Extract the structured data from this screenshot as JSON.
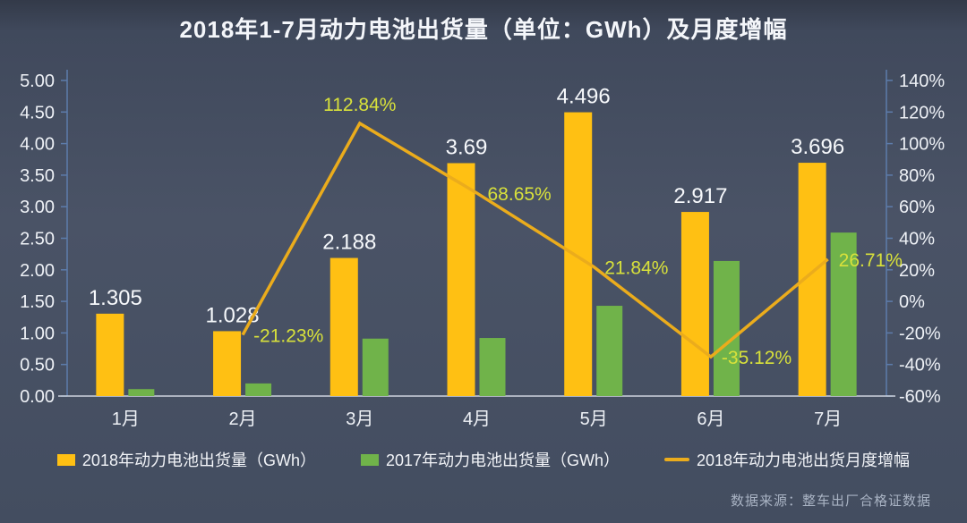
{
  "title": "2018年1-7月动力电池出货量（单位：GWh）及月度增幅",
  "source": "数据来源：整车出厂合格证数据",
  "colors": {
    "background": "#4A5366",
    "text": "#EEF1F6",
    "bar_label": "#F7F9FC",
    "line_label": "#D8E13B",
    "axis_line": "#5D7CAB",
    "baseline": "#CDD3DE",
    "bar_2018": "#FFC013",
    "bar_2017": "#70B34A",
    "growth_line": "#EBAC1C"
  },
  "chart_data": {
    "type": "combo",
    "categories": [
      "1月",
      "2月",
      "3月",
      "4月",
      "5月",
      "6月",
      "7月"
    ],
    "series": [
      {
        "name": "2018年动力电池出货量（GWh）",
        "type": "bar",
        "axis": "left",
        "color": "#FFC013",
        "values": [
          1.305,
          1.028,
          2.188,
          3.69,
          4.496,
          2.917,
          3.696
        ],
        "labels": [
          "1.305",
          "1.028",
          "2.188",
          "3.69",
          "4.496",
          "2.917",
          "3.696"
        ]
      },
      {
        "name": "2017年动力电池出货量（GWh）",
        "type": "bar",
        "axis": "left",
        "color": "#70B34A",
        "values": [
          0.11,
          0.2,
          0.91,
          0.92,
          1.43,
          2.14,
          2.59
        ]
      },
      {
        "name": "2018年动力电池出货月度增幅",
        "type": "line",
        "axis": "right",
        "color": "#EBAC1C",
        "values": [
          null,
          -21.23,
          112.84,
          68.65,
          21.84,
          -35.12,
          26.71
        ],
        "labels": [
          null,
          "-21.23%",
          "112.84%",
          "68.65%",
          "21.84%",
          "-35.12%",
          "26.71%"
        ],
        "label_positions": [
          null,
          "right",
          "above",
          "right",
          "right",
          "right",
          "right"
        ]
      }
    ],
    "left_axis": {
      "min": 0,
      "max": 5,
      "step": 0.5,
      "decimals": 2
    },
    "right_axis": {
      "min": -60,
      "max": 140,
      "step": 20,
      "suffix": "%"
    },
    "grid": false,
    "legend_position": "bottom"
  }
}
